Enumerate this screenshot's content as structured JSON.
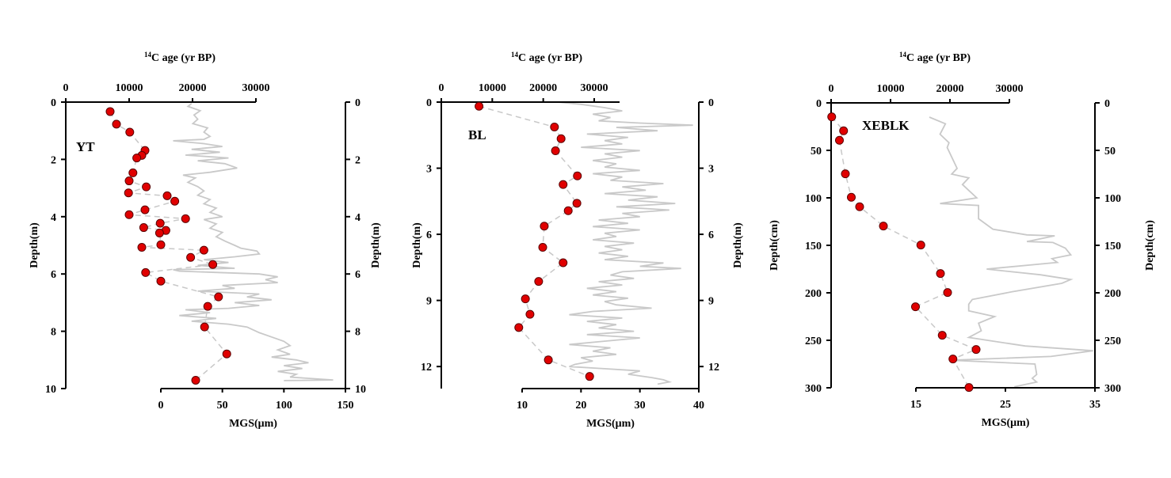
{
  "chart_data": [
    {
      "type": "scatter+line",
      "panel_label": "YT",
      "title_sup": "14",
      "title": "C age (yr BP)",
      "ylabel": "Depth(m)",
      "ylabel_right": "Depth(m)",
      "xlabel_bottom": "MGS(μm)",
      "depth_range": [
        0,
        10
      ],
      "depth_ticks": [
        0,
        2,
        4,
        6,
        8,
        10
      ],
      "age_range": [
        0,
        30000
      ],
      "age_ticks": [
        0,
        10000,
        20000,
        30000
      ],
      "mgs_range": [
        0,
        150
      ],
      "mgs_ticks": [
        0,
        50,
        100,
        150
      ],
      "colors": {
        "points": "#e00000",
        "mgs_line": "#c9c9c9",
        "connector": "#c8c8c8"
      },
      "age_points": [
        [
          0.33,
          7000
        ],
        [
          0.77,
          8000
        ],
        [
          1.05,
          10100
        ],
        [
          1.69,
          12500
        ],
        [
          1.86,
          12000
        ],
        [
          1.95,
          11200
        ],
        [
          2.47,
          10600
        ],
        [
          2.75,
          10000
        ],
        [
          2.96,
          12700
        ],
        [
          3.17,
          9900
        ],
        [
          3.27,
          16000
        ],
        [
          3.46,
          17200
        ],
        [
          3.76,
          12500
        ],
        [
          3.93,
          10000
        ],
        [
          4.07,
          18900
        ],
        [
          4.23,
          14900
        ],
        [
          4.38,
          12300
        ],
        [
          4.48,
          15800
        ],
        [
          4.57,
          14800
        ],
        [
          4.98,
          15000
        ],
        [
          5.07,
          12000
        ],
        [
          5.17,
          21800
        ],
        [
          5.42,
          19700
        ],
        [
          5.67,
          23200
        ],
        [
          5.95,
          12600
        ],
        [
          6.25,
          15000
        ],
        [
          6.8,
          24100
        ],
        [
          7.13,
          22400
        ],
        [
          7.85,
          21900
        ],
        [
          8.79,
          25400
        ],
        [
          9.71,
          20500
        ]
      ],
      "mgs_series": [
        [
          0.05,
          25
        ],
        [
          0.15,
          22
        ],
        [
          0.3,
          32
        ],
        [
          0.45,
          27
        ],
        [
          0.6,
          30
        ],
        [
          0.75,
          26
        ],
        [
          0.9,
          38
        ],
        [
          1.05,
          35
        ],
        [
          1.2,
          40
        ],
        [
          1.3,
          35
        ],
        [
          1.35,
          10
        ],
        [
          1.45,
          35
        ],
        [
          1.55,
          50
        ],
        [
          1.65,
          25
        ],
        [
          1.75,
          48
        ],
        [
          1.85,
          20
        ],
        [
          1.95,
          55
        ],
        [
          2.05,
          30
        ],
        [
          2.15,
          52
        ],
        [
          2.3,
          62
        ],
        [
          2.45,
          40
        ],
        [
          2.55,
          18
        ],
        [
          2.65,
          28
        ],
        [
          2.8,
          22
        ],
        [
          2.95,
          30
        ],
        [
          3.1,
          35
        ],
        [
          3.25,
          30
        ],
        [
          3.4,
          40
        ],
        [
          3.55,
          35
        ],
        [
          3.7,
          45
        ],
        [
          3.85,
          40
        ],
        [
          4.0,
          50
        ],
        [
          4.1,
          35
        ],
        [
          4.25,
          45
        ],
        [
          4.4,
          40
        ],
        [
          4.55,
          50
        ],
        [
          4.7,
          45
        ],
        [
          4.85,
          52
        ],
        [
          5.0,
          60
        ],
        [
          5.1,
          65
        ],
        [
          5.2,
          78
        ],
        [
          5.3,
          80
        ],
        [
          5.4,
          60
        ],
        [
          5.5,
          35
        ],
        [
          5.6,
          55
        ],
        [
          5.7,
          30
        ],
        [
          5.8,
          60
        ],
        [
          5.85,
          10
        ],
        [
          5.9,
          15
        ],
        [
          6.0,
          80
        ],
        [
          6.1,
          95
        ],
        [
          6.2,
          85
        ],
        [
          6.3,
          95
        ],
        [
          6.4,
          50
        ],
        [
          6.5,
          60
        ],
        [
          6.6,
          30
        ],
        [
          6.7,
          80
        ],
        [
          6.8,
          70
        ],
        [
          6.9,
          90
        ],
        [
          7.0,
          60
        ],
        [
          7.1,
          80
        ],
        [
          7.2,
          55
        ],
        [
          7.25,
          20
        ],
        [
          7.35,
          40
        ],
        [
          7.45,
          15
        ],
        [
          7.55,
          45
        ],
        [
          7.65,
          25
        ],
        [
          7.75,
          55
        ],
        [
          7.85,
          70
        ],
        [
          7.95,
          75
        ],
        [
          8.05,
          80
        ],
        [
          8.2,
          90
        ],
        [
          8.35,
          100
        ],
        [
          8.5,
          105
        ],
        [
          8.65,
          95
        ],
        [
          8.8,
          105
        ],
        [
          8.9,
          90
        ],
        [
          9.0,
          110
        ],
        [
          9.1,
          120
        ],
        [
          9.2,
          100
        ],
        [
          9.3,
          115
        ],
        [
          9.4,
          95
        ],
        [
          9.5,
          110
        ],
        [
          9.6,
          105
        ],
        [
          9.7,
          140
        ],
        [
          9.72,
          100
        ]
      ]
    },
    {
      "type": "scatter+line",
      "panel_label": "BL",
      "title_sup": "14",
      "title": "C age (yr BP)",
      "ylabel": "Depth(m)",
      "ylabel_right": "Depth(m)",
      "xlabel_bottom": "MGS(μm)",
      "depth_range": [
        0,
        13
      ],
      "depth_ticks": [
        0,
        3,
        6,
        9,
        12
      ],
      "age_range": [
        0,
        35000
      ],
      "age_ticks": [
        0,
        10000,
        20000,
        30000
      ],
      "mgs_range": [
        10,
        40
      ],
      "mgs_ticks": [
        10,
        20,
        30,
        40
      ],
      "colors": {
        "points": "#e00000",
        "mgs_line": "#c9c9c9",
        "connector": "#c8c8c8"
      },
      "age_points": [
        [
          0.19,
          7400
        ],
        [
          1.13,
          22200
        ],
        [
          1.66,
          23500
        ],
        [
          2.21,
          22400
        ],
        [
          3.35,
          26700
        ],
        [
          3.74,
          23900
        ],
        [
          4.59,
          26600
        ],
        [
          4.93,
          24900
        ],
        [
          5.63,
          20200
        ],
        [
          6.59,
          19900
        ],
        [
          7.29,
          23900
        ],
        [
          8.14,
          19100
        ],
        [
          8.93,
          16500
        ],
        [
          9.63,
          17400
        ],
        [
          10.23,
          15200
        ],
        [
          11.7,
          21000
        ],
        [
          12.45,
          29100
        ]
      ],
      "mgs_series": [
        [
          0,
          16
        ],
        [
          0.1,
          20
        ],
        [
          0.25,
          24
        ],
        [
          0.4,
          27
        ],
        [
          0.55,
          22
        ],
        [
          0.7,
          25
        ],
        [
          0.85,
          23
        ],
        [
          0.95,
          30
        ],
        [
          1.05,
          39
        ],
        [
          1.15,
          26
        ],
        [
          1.3,
          33
        ],
        [
          1.45,
          21
        ],
        [
          1.6,
          28
        ],
        [
          1.75,
          24
        ],
        [
          1.9,
          27
        ],
        [
          2.05,
          20
        ],
        [
          2.2,
          30
        ],
        [
          2.35,
          24
        ],
        [
          2.5,
          27
        ],
        [
          2.65,
          22
        ],
        [
          2.8,
          26
        ],
        [
          2.95,
          24
        ],
        [
          3.1,
          30
        ],
        [
          3.25,
          22
        ],
        [
          3.4,
          27
        ],
        [
          3.55,
          25
        ],
        [
          3.7,
          34
        ],
        [
          3.85,
          27
        ],
        [
          4.0,
          31
        ],
        [
          4.15,
          24
        ],
        [
          4.3,
          33
        ],
        [
          4.45,
          28
        ],
        [
          4.6,
          36
        ],
        [
          4.75,
          26
        ],
        [
          4.9,
          35
        ],
        [
          5.05,
          27
        ],
        [
          5.2,
          30
        ],
        [
          5.35,
          23
        ],
        [
          5.5,
          28
        ],
        [
          5.65,
          22
        ],
        [
          5.8,
          30
        ],
        [
          5.95,
          24
        ],
        [
          6.1,
          26
        ],
        [
          6.25,
          22
        ],
        [
          6.4,
          29
        ],
        [
          6.55,
          24
        ],
        [
          6.7,
          27
        ],
        [
          6.85,
          23
        ],
        [
          7.0,
          28
        ],
        [
          7.15,
          24
        ],
        [
          7.3,
          34
        ],
        [
          7.45,
          30
        ],
        [
          7.55,
          37
        ],
        [
          7.7,
          27
        ],
        [
          7.85,
          25
        ],
        [
          8.0,
          29
        ],
        [
          8.15,
          23
        ],
        [
          8.3,
          27
        ],
        [
          8.45,
          21
        ],
        [
          8.6,
          26
        ],
        [
          8.75,
          22
        ],
        [
          8.9,
          28
        ],
        [
          9.05,
          24
        ],
        [
          9.2,
          26
        ],
        [
          9.35,
          32
        ],
        [
          9.5,
          22
        ],
        [
          9.65,
          18
        ],
        [
          9.8,
          27
        ],
        [
          9.95,
          21
        ],
        [
          10.1,
          26
        ],
        [
          10.25,
          23
        ],
        [
          10.4,
          29
        ],
        [
          10.55,
          21
        ],
        [
          10.7,
          30
        ],
        [
          10.85,
          24
        ],
        [
          11.0,
          18
        ],
        [
          11.15,
          25
        ],
        [
          11.3,
          22
        ],
        [
          11.45,
          26
        ],
        [
          11.6,
          20
        ],
        [
          11.75,
          22
        ],
        [
          11.9,
          19
        ],
        [
          12.0,
          18
        ],
        [
          12.1,
          24
        ],
        [
          12.2,
          30
        ],
        [
          12.35,
          28
        ],
        [
          12.5,
          32
        ],
        [
          12.6,
          34
        ],
        [
          12.7,
          35
        ],
        [
          12.8,
          33
        ]
      ]
    },
    {
      "type": "scatter+line",
      "panel_label": "XEBLK",
      "title_sup": "14",
      "title": "C age (yr BP)",
      "ylabel": "Depth(cm)",
      "ylabel_right": "Depth(cm)",
      "xlabel_bottom": "MGS(μm)",
      "depth_range": [
        0,
        300
      ],
      "depth_ticks": [
        0,
        50,
        100,
        150,
        200,
        250,
        300
      ],
      "age_range": [
        0,
        30000
      ],
      "age_ticks": [
        0,
        10000,
        20000,
        30000
      ],
      "mgs_range": [
        15,
        35
      ],
      "mgs_ticks": [
        15,
        25,
        35
      ],
      "colors": {
        "points": "#e00000",
        "mgs_line": "#c9c9c9",
        "connector": "#e8c8cc"
      },
      "age_points": [
        [
          14.7,
          100
        ],
        [
          29.4,
          2100
        ],
        [
          39.4,
          1400
        ],
        [
          74.7,
          2400
        ],
        [
          99.4,
          3400
        ],
        [
          109.4,
          4800
        ],
        [
          129.7,
          8800
        ],
        [
          149.7,
          15100
        ],
        [
          179.7,
          18400
        ],
        [
          199.7,
          19600
        ],
        [
          214.7,
          14200
        ],
        [
          244.7,
          18700
        ],
        [
          259.7,
          24400
        ],
        [
          269.7,
          20500
        ],
        [
          299.7,
          23200
        ]
      ],
      "mgs_series": [
        [
          15,
          16.5
        ],
        [
          22,
          18.3
        ],
        [
          33,
          17.7
        ],
        [
          42,
          18.7
        ],
        [
          47,
          18.5
        ],
        [
          61,
          19.2
        ],
        [
          69,
          19.6
        ],
        [
          75,
          19.0
        ],
        [
          79,
          20.9
        ],
        [
          86,
          20.2
        ],
        [
          100,
          21.8
        ],
        [
          106,
          17.7
        ],
        [
          108,
          22.0
        ],
        [
          122,
          22.0
        ],
        [
          133,
          23.6
        ],
        [
          139,
          27.4
        ],
        [
          140,
          30.5
        ],
        [
          146,
          27.4
        ],
        [
          147,
          30.3
        ],
        [
          153,
          31.7
        ],
        [
          160,
          32.3
        ],
        [
          164,
          30.2
        ],
        [
          168,
          30.8
        ],
        [
          175,
          22.9
        ],
        [
          181,
          28.9
        ],
        [
          186,
          32.3
        ],
        [
          190,
          31.3
        ],
        [
          199,
          25.7
        ],
        [
          207,
          21.3
        ],
        [
          212,
          20.9
        ],
        [
          219,
          20.9
        ],
        [
          225,
          23.8
        ],
        [
          232,
          22.0
        ],
        [
          240,
          22.3
        ],
        [
          247,
          20.9
        ],
        [
          256,
          27.2
        ],
        [
          261,
          34.8
        ],
        [
          267,
          30.1
        ],
        [
          271,
          18.9
        ],
        [
          275,
          28.3
        ],
        [
          286,
          28.5
        ],
        [
          290,
          28.0
        ],
        [
          294,
          28.5
        ],
        [
          299,
          26.0
        ]
      ]
    }
  ]
}
